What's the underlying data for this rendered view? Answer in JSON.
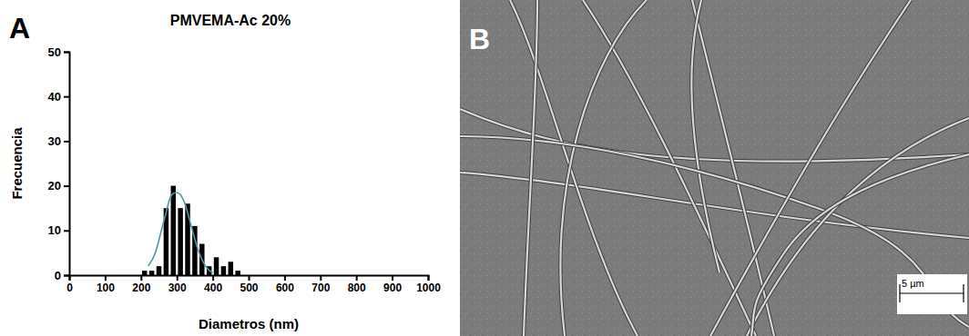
{
  "chart_data": {
    "type": "histogram",
    "title": "PMVEMA-Ac 20%",
    "x_label": "Diametros (nm)",
    "y_label": "Frecuencia",
    "annotations": [
      "A"
    ],
    "bins": [
      200,
      220,
      240,
      260,
      280,
      300,
      320,
      340,
      360,
      380,
      400,
      420,
      440,
      460,
      480
    ],
    "counts": [
      1,
      1,
      2,
      15,
      20,
      15,
      16,
      11,
      7,
      2,
      4,
      2,
      3,
      1
    ],
    "color": "#000000",
    "fit": {
      "type": "line",
      "color": "#4a9aa5",
      "x": [
        220,
        240,
        260,
        270,
        280,
        290,
        300,
        310,
        320,
        330,
        340,
        360,
        380,
        400
      ],
      "y": [
        2,
        5,
        11,
        14,
        17,
        18.3,
        18.5,
        18,
        16.5,
        14,
        11,
        5.5,
        2,
        0.5
      ]
    },
    "xlim": [
      0,
      1000
    ],
    "xticks": [
      0,
      100,
      200,
      300,
      400,
      500,
      600,
      700,
      800,
      900,
      1000
    ],
    "ylim": [
      0,
      50
    ],
    "yticks": [
      0,
      10,
      20,
      30,
      40,
      50
    ],
    "grid": false
  },
  "image": {
    "label": "B",
    "scale_bar_label": "5 µm"
  }
}
